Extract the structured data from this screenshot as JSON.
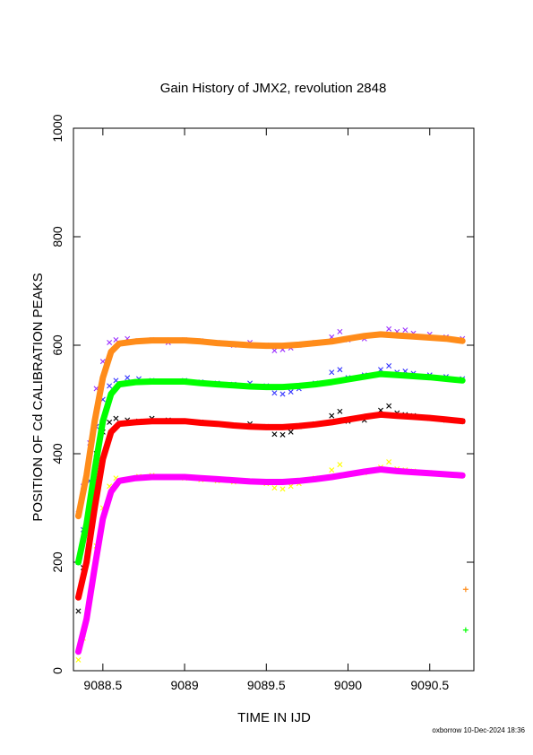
{
  "chart_data": {
    "type": "scatter",
    "title": "Gain History of JMX2, revolution 2848",
    "xlabel": "TIME IN IJD",
    "ylabel": "POSITION OF Cd CALIBRATION PEAKS",
    "xlim": [
      9088.32,
      9090.77
    ],
    "ylim": [
      0,
      1000
    ],
    "x_ticks": [
      9088.5,
      9089,
      9089.5,
      9090,
      9090.5
    ],
    "x_tick_labels": [
      "9088.5",
      "9089",
      "9089.5",
      "9090",
      "9090.5"
    ],
    "y_ticks": [
      0,
      200,
      400,
      600,
      800,
      1000
    ],
    "y_tick_labels": [
      "0",
      "200",
      "400",
      "600",
      "800",
      "1000"
    ],
    "grid": false,
    "legend": "none",
    "series": [
      {
        "role": "raw",
        "color": "#9b30ff",
        "x": [
          9088.35,
          9088.38,
          9088.42,
          9088.46,
          9088.5,
          9088.54,
          9088.58,
          9088.65,
          9088.72,
          9088.8,
          9088.9,
          9089.0,
          9089.1,
          9089.2,
          9089.3,
          9089.4,
          9089.5,
          9089.55,
          9089.6,
          9089.65,
          9089.7,
          9089.8,
          9089.9,
          9089.95,
          9090.0,
          9090.1,
          9090.2,
          9090.25,
          9090.3,
          9090.35,
          9090.4,
          9090.5,
          9090.6,
          9090.7
        ],
        "y": [
          290,
          340,
          420,
          520,
          570,
          605,
          610,
          612,
          608,
          610,
          605,
          610,
          608,
          605,
          600,
          605,
          600,
          590,
          592,
          595,
          600,
          605,
          615,
          625,
          610,
          612,
          620,
          630,
          625,
          628,
          622,
          620,
          615,
          612
        ]
      },
      {
        "role": "raw",
        "color": "#3333ff",
        "x": [
          9088.35,
          9088.38,
          9088.42,
          9088.46,
          9088.5,
          9088.54,
          9088.58,
          9088.65,
          9088.72,
          9088.8,
          9088.9,
          9089.0,
          9089.1,
          9089.2,
          9089.3,
          9089.4,
          9089.5,
          9089.55,
          9089.6,
          9089.65,
          9089.7,
          9089.8,
          9089.9,
          9089.95,
          9090.0,
          9090.1,
          9090.2,
          9090.25,
          9090.3,
          9090.35,
          9090.4,
          9090.5,
          9090.6,
          9090.7
        ],
        "y": [
          200,
          260,
          350,
          450,
          500,
          525,
          535,
          540,
          538,
          535,
          533,
          535,
          532,
          530,
          528,
          530,
          525,
          512,
          510,
          514,
          520,
          530,
          550,
          555,
          540,
          545,
          555,
          562,
          550,
          552,
          548,
          545,
          542,
          538
        ]
      },
      {
        "role": "raw",
        "color": "#000000",
        "x": [
          9088.35,
          9088.38,
          9088.42,
          9088.46,
          9088.5,
          9088.54,
          9088.58,
          9088.65,
          9088.72,
          9088.8,
          9088.9,
          9089.0,
          9089.1,
          9089.2,
          9089.3,
          9089.4,
          9089.5,
          9089.55,
          9089.6,
          9089.65,
          9089.7,
          9089.8,
          9089.9,
          9089.95,
          9090.0,
          9090.1,
          9090.2,
          9090.25,
          9090.3,
          9090.35,
          9090.4,
          9090.5,
          9090.6,
          9090.7
        ],
        "y": [
          110,
          190,
          300,
          400,
          440,
          458,
          465,
          462,
          460,
          465,
          462,
          460,
          458,
          455,
          452,
          455,
          450,
          436,
          435,
          440,
          450,
          455,
          470,
          478,
          460,
          462,
          480,
          488,
          475,
          472,
          470,
          465,
          462,
          460
        ]
      },
      {
        "role": "raw",
        "color": "#ffff00",
        "x": [
          9088.35,
          9088.38,
          9088.42,
          9088.46,
          9088.5,
          9088.54,
          9088.58,
          9088.65,
          9088.72,
          9088.8,
          9088.9,
          9089.0,
          9089.1,
          9089.2,
          9089.3,
          9089.4,
          9089.5,
          9089.55,
          9089.6,
          9089.65,
          9089.7,
          9089.8,
          9089.9,
          9089.95,
          9090.0,
          9090.1,
          9090.2,
          9090.25,
          9090.3,
          9090.35,
          9090.4,
          9090.5,
          9090.6,
          9090.7
        ],
        "y": [
          20,
          60,
          130,
          230,
          300,
          340,
          355,
          352,
          358,
          360,
          358,
          355,
          352,
          350,
          348,
          350,
          345,
          337,
          335,
          340,
          345,
          355,
          370,
          380,
          362,
          365,
          375,
          385,
          372,
          370,
          368,
          365,
          362,
          360
        ]
      },
      {
        "role": "fit",
        "color": "#ff8c1a",
        "x": [
          9088.35,
          9088.4,
          9088.45,
          9088.5,
          9088.55,
          9088.6,
          9088.7,
          9088.8,
          9088.9,
          9089.0,
          9089.1,
          9089.2,
          9089.3,
          9089.4,
          9089.5,
          9089.6,
          9089.7,
          9089.8,
          9089.9,
          9090.0,
          9090.1,
          9090.2,
          9090.3,
          9090.4,
          9090.5,
          9090.6,
          9090.7
        ],
        "y": [
          285,
          360,
          460,
          540,
          588,
          603,
          607,
          609,
          609,
          609,
          607,
          604,
          602,
          600,
          599,
          599,
          601,
          604,
          607,
          612,
          617,
          620,
          618,
          616,
          614,
          612,
          608
        ]
      },
      {
        "role": "fit",
        "color": "#00ff00",
        "x": [
          9088.35,
          9088.4,
          9088.45,
          9088.5,
          9088.55,
          9088.6,
          9088.7,
          9088.8,
          9088.9,
          9089.0,
          9089.1,
          9089.2,
          9089.3,
          9089.4,
          9089.5,
          9089.6,
          9089.7,
          9089.8,
          9089.9,
          9090.0,
          9090.1,
          9090.2,
          9090.3,
          9090.4,
          9090.5,
          9090.6,
          9090.7
        ],
        "y": [
          200,
          270,
          370,
          460,
          510,
          528,
          532,
          533,
          533,
          533,
          530,
          528,
          526,
          524,
          523,
          523,
          525,
          528,
          532,
          537,
          542,
          547,
          545,
          543,
          541,
          538,
          535
        ]
      },
      {
        "role": "fit",
        "color": "#ff0000",
        "x": [
          9088.35,
          9088.4,
          9088.45,
          9088.5,
          9088.55,
          9088.6,
          9088.7,
          9088.8,
          9088.9,
          9089.0,
          9089.1,
          9089.2,
          9089.3,
          9089.4,
          9089.5,
          9089.6,
          9089.7,
          9089.8,
          9089.9,
          9090.0,
          9090.1,
          9090.2,
          9090.3,
          9090.4,
          9090.5,
          9090.6,
          9090.7
        ],
        "y": [
          135,
          200,
          300,
          390,
          440,
          455,
          458,
          460,
          460,
          460,
          457,
          455,
          452,
          450,
          449,
          449,
          451,
          454,
          458,
          463,
          468,
          472,
          470,
          468,
          466,
          463,
          460
        ]
      },
      {
        "role": "fit",
        "color": "#ff00ff",
        "x": [
          9088.35,
          9088.4,
          9088.45,
          9088.5,
          9088.55,
          9088.6,
          9088.7,
          9088.8,
          9088.9,
          9089.0,
          9089.1,
          9089.2,
          9089.3,
          9089.4,
          9089.5,
          9089.6,
          9089.7,
          9089.8,
          9089.9,
          9090.0,
          9090.1,
          9090.2,
          9090.3,
          9090.4,
          9090.5,
          9090.6,
          9090.7
        ],
        "y": [
          35,
          95,
          190,
          280,
          330,
          350,
          355,
          357,
          357,
          357,
          355,
          353,
          351,
          349,
          348,
          348,
          350,
          353,
          357,
          362,
          367,
          371,
          368,
          366,
          364,
          362,
          360
        ]
      }
    ],
    "markers": [
      {
        "x": 9090.72,
        "y": 150,
        "color": "#ff8c1a",
        "symbol": "+"
      },
      {
        "x": 9090.72,
        "y": 75,
        "color": "#00ff00",
        "symbol": "+"
      }
    ]
  },
  "footer_stamp": "oxborrow 10-Dec-2024 18:36"
}
